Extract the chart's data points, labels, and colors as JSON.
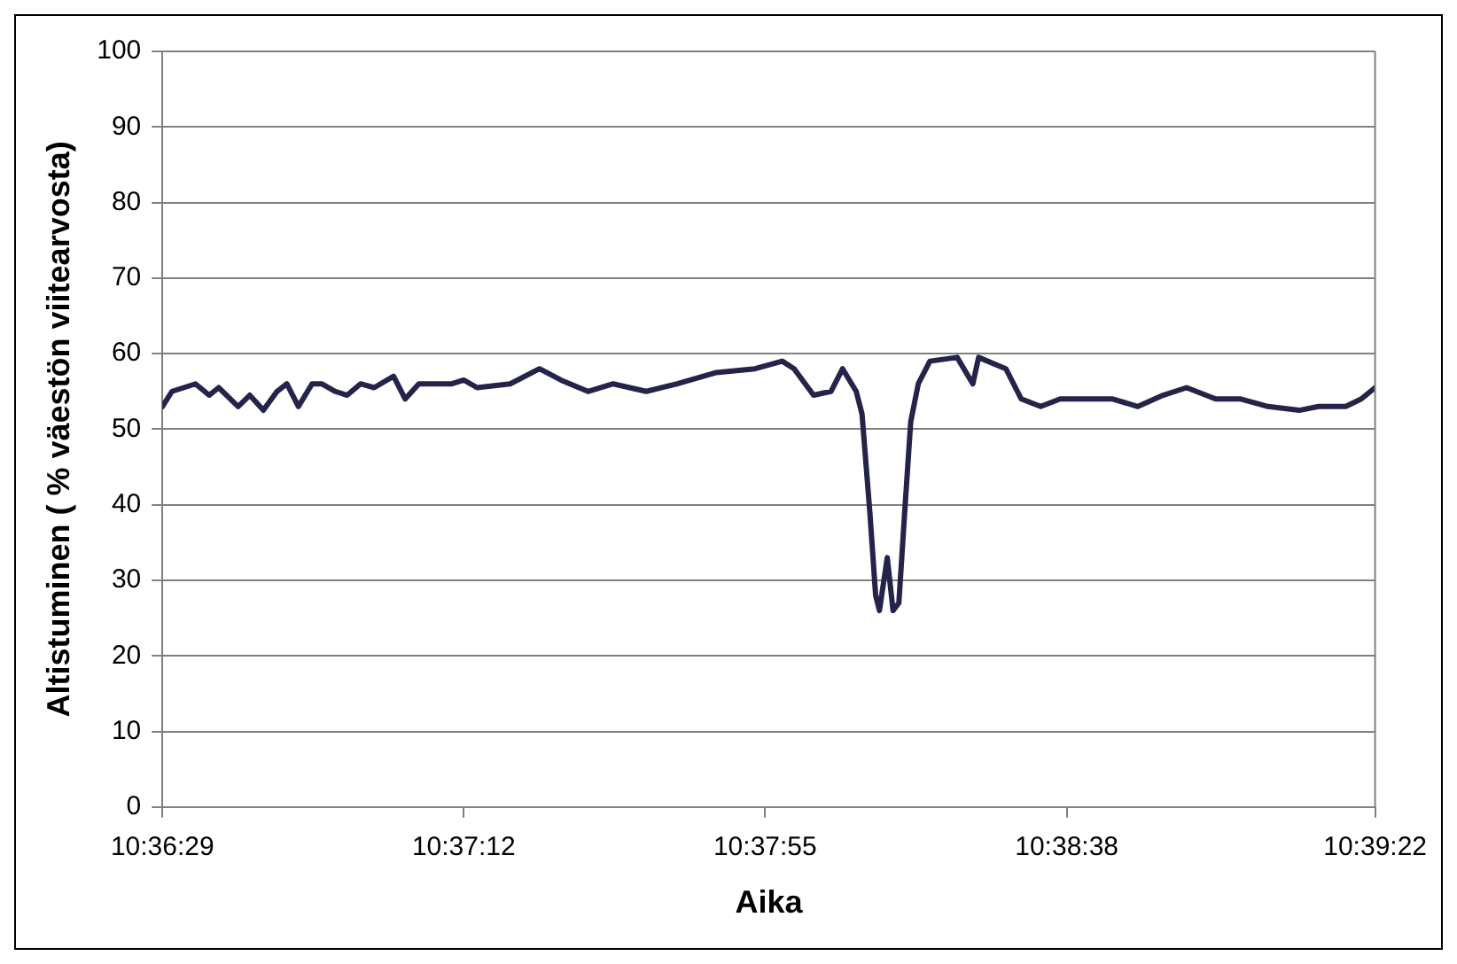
{
  "chart_data": {
    "type": "line",
    "xlabel": "Aika",
    "ylabel": "Altistuminen ( % väestön viitearvosta)",
    "xlim": [
      10.60806,
      10.65611
    ],
    "xticks": [
      {
        "value": 10.60806,
        "label": "10:36:29"
      },
      {
        "value": 10.62,
        "label": "10:37:12"
      },
      {
        "value": 10.63194,
        "label": "10:37:55"
      },
      {
        "value": 10.64389,
        "label": "10:38:38"
      },
      {
        "value": 10.65611,
        "label": "10:39:22"
      }
    ],
    "ylim": [
      0,
      100
    ],
    "yticks": [
      0,
      10,
      20,
      30,
      40,
      50,
      60,
      70,
      80,
      90,
      100
    ],
    "grid": "y",
    "legend": false,
    "marker": "none",
    "line_style": "solid",
    "series": [
      {
        "color": "#24234a",
        "x": [
          10.60806,
          10.60844,
          10.60937,
          10.60991,
          10.61029,
          10.61106,
          10.61152,
          10.61206,
          10.6126,
          10.61299,
          10.61345,
          10.61399,
          10.61437,
          10.61491,
          10.61538,
          10.61591,
          10.61645,
          10.61722,
          10.61768,
          10.61822,
          10.61953,
          10.62,
          10.62053,
          10.62184,
          10.623,
          10.62385,
          10.62492,
          10.62592,
          10.62723,
          10.62846,
          10.63001,
          10.63154,
          10.63262,
          10.63309,
          10.63386,
          10.63455,
          10.63501,
          10.63555,
          10.63578,
          10.63609,
          10.63632,
          10.63647,
          10.63678,
          10.63701,
          10.63724,
          10.63747,
          10.63771,
          10.63801,
          10.63847,
          10.63955,
          10.64017,
          10.6404,
          10.64148,
          10.64209,
          10.64286,
          10.64363,
          10.64464,
          10.64571,
          10.64671,
          10.64771,
          10.64864,
          10.64979,
          10.65079,
          10.65187,
          10.6531,
          10.65387,
          10.65494,
          10.65556,
          10.65611
        ],
        "values": [
          53,
          55,
          56,
          54.5,
          55.5,
          53,
          54.5,
          52.5,
          55,
          56,
          53,
          56,
          56,
          55,
          54.5,
          56,
          55.5,
          57,
          54,
          56,
          56,
          56.5,
          55.5,
          56,
          58,
          56.5,
          55,
          56,
          55,
          56,
          57.5,
          58,
          59,
          58,
          54.5,
          55,
          58,
          55,
          52,
          39,
          28,
          26,
          33,
          26,
          27,
          39,
          51,
          56,
          59,
          59.5,
          56,
          59.5,
          58,
          54,
          53,
          54,
          54,
          54,
          53,
          54.5,
          55.5,
          54,
          54,
          53,
          52.5,
          53,
          53,
          54,
          55.5
        ]
      }
    ]
  }
}
